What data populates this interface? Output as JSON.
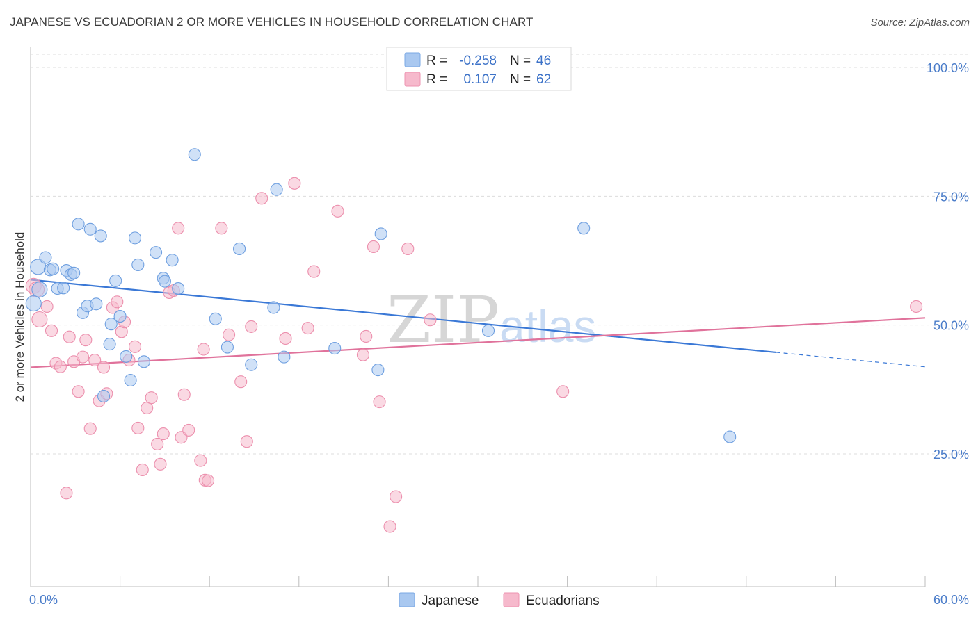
{
  "title": "JAPANESE VS ECUADORIAN 2 OR MORE VEHICLES IN HOUSEHOLD CORRELATION CHART",
  "source": "Source: ZipAtlas.com",
  "watermark": {
    "zip": "ZIP",
    "atlas": "atlas"
  },
  "legend": {
    "rows": [
      {
        "r_label": "R =",
        "r_value": "-0.258",
        "n_label": "N =",
        "n_value": "46",
        "color": "#a9c8f0"
      },
      {
        "r_label": "R =",
        "r_value": "0.107",
        "n_label": "N =",
        "n_value": "62",
        "color": "#f6b9cc"
      }
    ]
  },
  "bottom_legend": [
    {
      "label": "Japanese",
      "color": "#a9c8f0"
    },
    {
      "label": "Ecuadorians",
      "color": "#f6b9cc"
    }
  ],
  "chart_data": {
    "type": "scatter",
    "title": "JAPANESE VS ECUADORIAN 2 OR MORE VEHICLES IN HOUSEHOLD CORRELATION CHART",
    "xlabel": "",
    "ylabel": "2 or more Vehicles in Household",
    "xlim": [
      0,
      60
    ],
    "ylim": [
      0,
      105
    ],
    "x_tick_labels": [
      "0.0%",
      "60.0%"
    ],
    "y_ticks": [
      25,
      50,
      75,
      100
    ],
    "y_tick_labels": [
      "25.0%",
      "50.0%",
      "75.0%",
      "100.0%"
    ],
    "grid": true,
    "colors": {
      "japanese": "#3a78d6",
      "ecuadorians": "#e0729b",
      "japanese_fill": "#a9c8f0",
      "ecuadorians_fill": "#f6b9cc"
    },
    "series": [
      {
        "name": "Japanese",
        "trend": {
          "x1": 0,
          "y1": 58.8,
          "x2": 50,
          "y2": 44.7,
          "dash_to_x": 60,
          "dash_to_y": 41.9
        },
        "points": [
          [
            0.2,
            54.2
          ],
          [
            0.5,
            61.3
          ],
          [
            0.6,
            56.9
          ],
          [
            1.0,
            63.1
          ],
          [
            1.3,
            60.7
          ],
          [
            1.5,
            60.9
          ],
          [
            1.8,
            57.1
          ],
          [
            2.2,
            57.2
          ],
          [
            2.4,
            60.6
          ],
          [
            2.7,
            59.8
          ],
          [
            2.9,
            60.1
          ],
          [
            3.2,
            69.6
          ],
          [
            3.5,
            52.4
          ],
          [
            3.8,
            53.7
          ],
          [
            4.0,
            68.6
          ],
          [
            4.4,
            54.1
          ],
          [
            4.7,
            67.3
          ],
          [
            4.9,
            36.2
          ],
          [
            5.3,
            46.3
          ],
          [
            5.4,
            50.2
          ],
          [
            5.7,
            58.6
          ],
          [
            6.0,
            51.7
          ],
          [
            6.4,
            43.9
          ],
          [
            6.7,
            39.3
          ],
          [
            7.0,
            66.9
          ],
          [
            7.2,
            61.7
          ],
          [
            7.6,
            42.9
          ],
          [
            8.4,
            64.1
          ],
          [
            8.9,
            59.1
          ],
          [
            9.0,
            58.5
          ],
          [
            9.5,
            62.6
          ],
          [
            9.9,
            57.1
          ],
          [
            11.0,
            83.1
          ],
          [
            12.4,
            51.2
          ],
          [
            13.2,
            45.7
          ],
          [
            14.0,
            64.8
          ],
          [
            14.8,
            42.3
          ],
          [
            16.3,
            53.4
          ],
          [
            16.5,
            76.3
          ],
          [
            17.0,
            43.8
          ],
          [
            20.4,
            45.5
          ],
          [
            23.3,
            41.3
          ],
          [
            23.5,
            67.7
          ],
          [
            30.7,
            48.9
          ],
          [
            37.1,
            68.8
          ],
          [
            46.9,
            28.3
          ]
        ]
      },
      {
        "name": "Ecuadorians",
        "trend": {
          "x1": 0,
          "y1": 41.8,
          "x2": 60,
          "y2": 51.4
        },
        "points": [
          [
            0.2,
            57.6
          ],
          [
            0.4,
            56.9
          ],
          [
            0.6,
            51.1
          ],
          [
            1.1,
            53.6
          ],
          [
            1.4,
            48.9
          ],
          [
            1.7,
            42.6
          ],
          [
            2.0,
            41.9
          ],
          [
            2.4,
            17.4
          ],
          [
            2.6,
            47.7
          ],
          [
            2.9,
            42.9
          ],
          [
            3.2,
            37.1
          ],
          [
            3.5,
            43.8
          ],
          [
            3.7,
            47.1
          ],
          [
            4.0,
            29.9
          ],
          [
            4.3,
            43.2
          ],
          [
            4.6,
            35.3
          ],
          [
            4.9,
            41.8
          ],
          [
            5.1,
            36.7
          ],
          [
            5.5,
            53.4
          ],
          [
            5.8,
            54.5
          ],
          [
            6.1,
            48.7
          ],
          [
            6.3,
            50.6
          ],
          [
            6.6,
            43.2
          ],
          [
            7.0,
            45.8
          ],
          [
            7.2,
            30.0
          ],
          [
            7.5,
            21.9
          ],
          [
            7.8,
            33.9
          ],
          [
            8.1,
            35.9
          ],
          [
            8.5,
            26.9
          ],
          [
            8.7,
            23.0
          ],
          [
            8.9,
            28.9
          ],
          [
            9.3,
            56.3
          ],
          [
            9.6,
            56.7
          ],
          [
            9.9,
            68.8
          ],
          [
            10.1,
            28.2
          ],
          [
            10.3,
            36.5
          ],
          [
            10.6,
            29.6
          ],
          [
            11.4,
            23.7
          ],
          [
            11.6,
            45.3
          ],
          [
            11.7,
            19.9
          ],
          [
            11.9,
            19.8
          ],
          [
            12.8,
            68.8
          ],
          [
            13.3,
            48.1
          ],
          [
            14.1,
            39.0
          ],
          [
            14.5,
            27.4
          ],
          [
            14.8,
            49.7
          ],
          [
            15.5,
            74.6
          ],
          [
            17.1,
            47.4
          ],
          [
            17.7,
            77.5
          ],
          [
            18.6,
            49.4
          ],
          [
            19.0,
            60.4
          ],
          [
            20.6,
            72.1
          ],
          [
            22.3,
            44.2
          ],
          [
            22.5,
            47.8
          ],
          [
            23.0,
            65.2
          ],
          [
            23.4,
            35.1
          ],
          [
            24.1,
            10.9
          ],
          [
            24.5,
            16.7
          ],
          [
            25.3,
            64.8
          ],
          [
            26.8,
            51.0
          ],
          [
            35.7,
            37.1
          ],
          [
            59.4,
            53.6
          ]
        ]
      }
    ]
  }
}
